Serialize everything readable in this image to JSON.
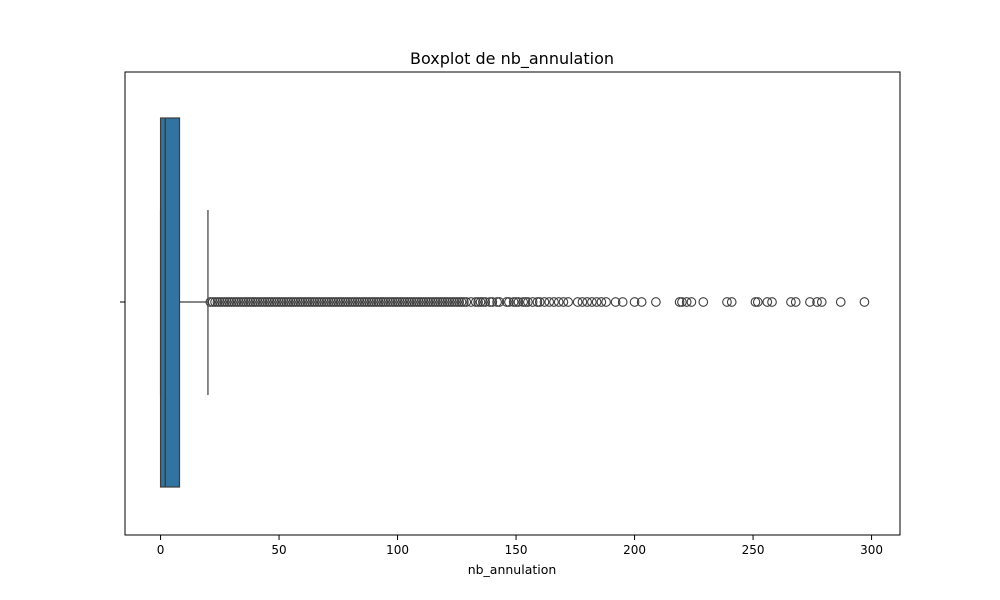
{
  "chart_data": {
    "type": "box",
    "orientation": "horizontal",
    "title": "Boxplot de nb_annulation",
    "xlabel": "nb_annulation",
    "ylabel": "",
    "xlim": [
      -15,
      312
    ],
    "x_ticks": [
      0,
      50,
      100,
      150,
      200,
      250,
      300
    ],
    "grid": false,
    "legend": "none",
    "box": {
      "whisker_low": 0,
      "q1": 0,
      "median": 2,
      "q3": 8,
      "whisker_high": 20,
      "fill_color": "#3274a1",
      "line_color": "#3d3d3d"
    },
    "outliers": [
      21,
      22,
      23,
      24,
      25,
      26,
      27,
      28,
      29,
      30,
      31,
      32,
      33,
      34,
      35,
      36,
      37,
      38,
      39,
      40,
      41,
      42,
      43,
      44,
      45,
      46,
      47,
      48,
      49,
      50,
      51,
      52,
      53,
      54,
      55,
      56,
      57,
      58,
      59,
      60,
      61,
      62,
      63,
      64,
      65,
      66,
      67,
      68,
      69,
      70,
      71,
      72,
      73,
      74,
      75,
      76,
      77,
      78,
      79,
      80,
      81,
      82,
      83,
      84,
      85,
      86,
      87,
      88,
      89,
      90,
      91,
      92,
      93,
      94,
      95,
      96,
      97,
      98,
      99,
      100,
      101,
      102,
      103,
      104,
      105,
      106,
      107,
      108,
      109,
      110,
      111,
      112,
      113,
      114,
      115,
      116,
      117,
      118,
      119,
      120,
      121,
      122,
      123,
      124,
      125,
      126,
      127,
      128,
      129,
      131,
      133,
      134,
      135,
      136,
      137,
      139,
      140,
      142,
      143,
      146,
      147,
      149,
      150,
      151,
      153,
      154,
      155,
      157,
      159,
      160,
      162,
      164,
      166,
      168,
      170,
      172,
      176,
      178,
      180,
      182,
      184,
      186,
      188,
      192,
      195,
      200,
      203,
      209,
      219,
      220,
      222,
      224,
      229,
      239,
      241,
      251,
      252,
      256,
      258,
      266,
      268,
      274,
      277,
      279,
      287,
      297
    ]
  }
}
